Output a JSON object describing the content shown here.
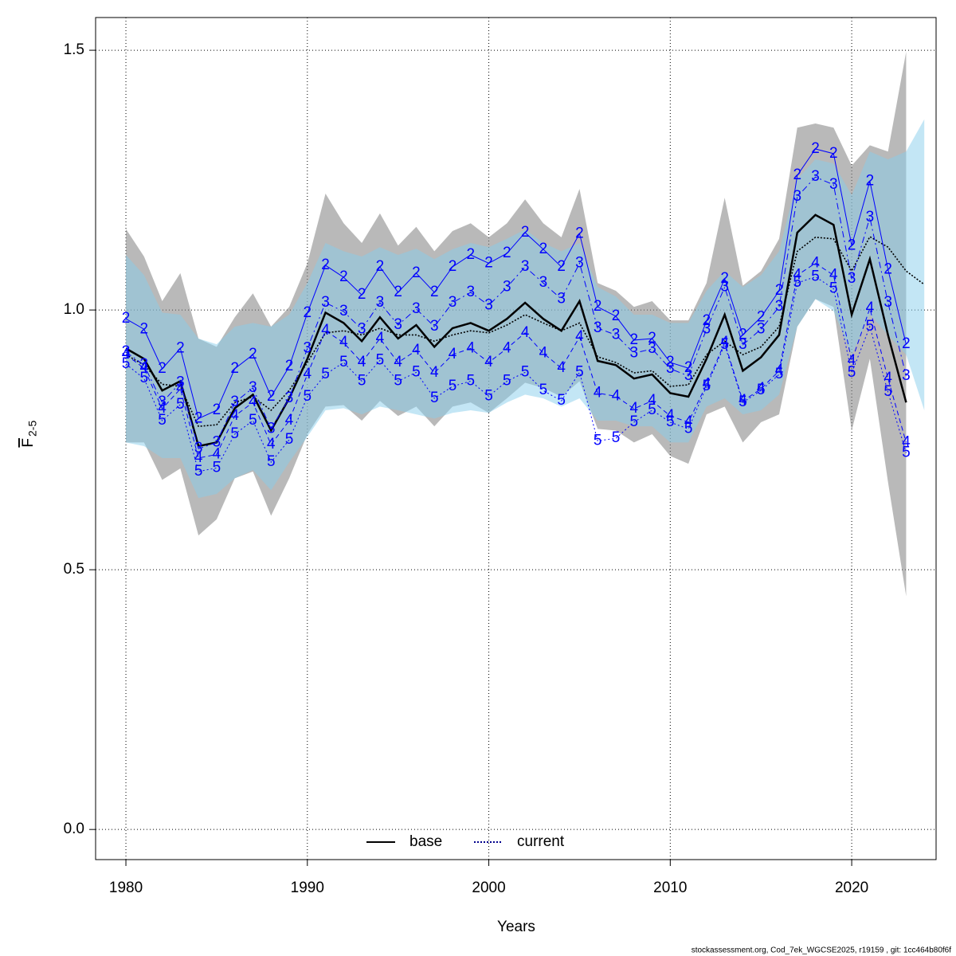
{
  "chart_data": {
    "type": "line",
    "x_label": "Years",
    "y_label": "F",
    "y_label_subscript": "2-5",
    "footer": "stockassessment.org, Cod_7ek_WGCSE2025, r19159 , git: 1cc464b80f6f",
    "x": [
      1980,
      1981,
      1982,
      1983,
      1984,
      1985,
      1986,
      1987,
      1988,
      1989,
      1990,
      1991,
      1992,
      1993,
      1994,
      1995,
      1996,
      1997,
      1998,
      1999,
      2000,
      2001,
      2002,
      2003,
      2004,
      2005,
      2006,
      2007,
      2008,
      2009,
      2010,
      2011,
      2012,
      2013,
      2014,
      2015,
      2016,
      2017,
      2018,
      2019,
      2020,
      2021,
      2022,
      2023,
      2024
    ],
    "xlim": [
      1978.33,
      2024.65
    ],
    "xticks": [
      1980,
      1990,
      2000,
      2010,
      2020
    ],
    "ylim": [
      -0.058,
      1.563
    ],
    "yticks": [
      {
        "value": 0,
        "label": "0.0"
      },
      0.5,
      {
        "value": 1,
        "label": "1.0"
      },
      1.5
    ],
    "grid": true,
    "legend_position": "bottom",
    "series": [
      {
        "name": "base",
        "color": "#000000",
        "band_color": "#808080",
        "values": [
          0.926,
          0.906,
          0.845,
          0.863,
          0.738,
          0.745,
          0.811,
          0.837,
          0.768,
          0.83,
          0.906,
          0.995,
          0.975,
          0.94,
          0.986,
          0.945,
          0.971,
          0.929,
          0.965,
          0.975,
          0.96,
          0.983,
          1.014,
          0.983,
          0.96,
          1.017,
          0.902,
          0.894,
          0.868,
          0.876,
          0.84,
          0.833,
          0.906,
          0.991,
          0.883,
          0.909,
          0.952,
          1.149,
          1.183,
          1.164,
          0.991,
          1.098,
          0.952,
          0.822,
          null
        ],
        "lower": [
          0.745,
          0.745,
          0.673,
          0.695,
          0.566,
          0.597,
          0.676,
          0.689,
          0.604,
          0.676,
          0.761,
          0.814,
          0.817,
          0.787,
          0.825,
          0.796,
          0.814,
          0.776,
          0.814,
          0.822,
          0.802,
          0.83,
          0.86,
          0.85,
          0.833,
          0.863,
          0.771,
          0.768,
          0.745,
          0.761,
          0.719,
          0.704,
          0.799,
          0.814,
          0.745,
          0.784,
          0.799,
          0.968,
          1.021,
          1.006,
          0.768,
          0.906,
          0.669,
          0.449,
          null
        ],
        "upper": [
          1.156,
          1.103,
          1.017,
          1.071,
          0.945,
          0.929,
          0.986,
          1.032,
          0.968,
          1.006,
          1.09,
          1.224,
          1.167,
          1.129,
          1.186,
          1.124,
          1.16,
          1.113,
          1.152,
          1.167,
          1.14,
          1.167,
          1.213,
          1.167,
          1.14,
          1.233,
          1.052,
          1.037,
          1.006,
          1.017,
          0.98,
          0.98,
          1.052,
          1.216,
          1.047,
          1.075,
          1.137,
          1.351,
          1.359,
          1.351,
          1.278,
          1.317,
          1.305,
          1.497,
          null
        ]
      },
      {
        "name": "current",
        "color": "#00008b",
        "band_color": "#87ceeb",
        "values": [
          0.914,
          0.894,
          0.857,
          0.853,
          0.776,
          0.779,
          0.822,
          0.833,
          0.807,
          0.845,
          0.899,
          0.956,
          0.96,
          0.952,
          0.965,
          0.952,
          0.952,
          0.94,
          0.952,
          0.96,
          0.956,
          0.971,
          0.991,
          0.975,
          0.96,
          0.975,
          0.91,
          0.899,
          0.879,
          0.883,
          0.853,
          0.856,
          0.914,
          0.94,
          0.914,
          0.929,
          0.968,
          1.113,
          1.14,
          1.137,
          1.075,
          1.141,
          1.121,
          1.075,
          1.049
        ],
        "lower": [
          0.745,
          0.738,
          0.715,
          0.715,
          0.638,
          0.646,
          0.676,
          0.692,
          0.653,
          0.707,
          0.756,
          0.807,
          0.811,
          0.799,
          0.814,
          0.807,
          0.799,
          0.791,
          0.802,
          0.807,
          0.802,
          0.822,
          0.837,
          0.83,
          0.814,
          0.83,
          0.787,
          0.787,
          0.776,
          0.776,
          0.745,
          0.745,
          0.814,
          0.83,
          0.799,
          0.807,
          0.837,
          0.968,
          1.021,
          0.998,
          0.914,
          0.991,
          0.952,
          0.914,
          0.807
        ],
        "upper": [
          1.106,
          1.067,
          0.995,
          0.991,
          0.945,
          0.934,
          0.968,
          0.975,
          0.968,
          0.991,
          1.052,
          1.129,
          1.113,
          1.103,
          1.121,
          1.106,
          1.118,
          1.098,
          1.117,
          1.129,
          1.121,
          1.137,
          1.155,
          1.129,
          1.113,
          1.129,
          1.044,
          1.026,
          0.991,
          0.991,
          0.975,
          0.975,
          1.037,
          1.075,
          1.044,
          1.067,
          1.113,
          1.252,
          1.29,
          1.282,
          1.221,
          1.305,
          1.29,
          1.305,
          1.367
        ]
      },
      {
        "name": "2",
        "color": "#0000ff",
        "values": [
          0.983,
          0.963,
          0.887,
          0.926,
          0.791,
          0.807,
          0.887,
          0.914,
          0.833,
          0.891,
          0.994,
          1.086,
          1.063,
          1.029,
          1.083,
          1.034,
          1.071,
          1.034,
          1.083,
          1.106,
          1.09,
          1.109,
          1.149,
          1.117,
          1.083,
          1.147,
          1.006,
          0.988,
          0.942,
          0.945,
          0.899,
          0.888,
          0.979,
          1.06,
          0.952,
          0.986,
          1.037,
          1.259,
          1.31,
          1.301,
          1.124,
          1.248,
          1.078,
          0.934,
          null
        ]
      },
      {
        "name": "3",
        "color": "#0000ff",
        "values": [
          0.919,
          0.894,
          0.822,
          0.86,
          0.733,
          0.745,
          0.822,
          0.85,
          0.771,
          0.83,
          0.926,
          1.014,
          0.997,
          0.963,
          1.014,
          0.971,
          1.002,
          0.968,
          1.014,
          1.034,
          1.009,
          1.044,
          1.083,
          1.052,
          1.021,
          1.09,
          0.965,
          0.952,
          0.917,
          0.925,
          0.887,
          0.873,
          0.963,
          1.044,
          0.933,
          0.963,
          1.006,
          1.218,
          1.256,
          1.241,
          1.06,
          1.178,
          1.014,
          0.873,
          null
        ]
      },
      {
        "name": "4",
        "color": "#0000ff",
        "values": [
          0.914,
          0.888,
          0.81,
          0.848,
          0.715,
          0.722,
          0.796,
          0.822,
          0.741,
          0.787,
          0.876,
          0.96,
          0.937,
          0.899,
          0.945,
          0.899,
          0.922,
          0.879,
          0.914,
          0.926,
          0.899,
          0.926,
          0.956,
          0.917,
          0.888,
          0.948,
          0.84,
          0.834,
          0.81,
          0.825,
          0.796,
          0.784,
          0.857,
          0.937,
          0.825,
          0.848,
          0.883,
          1.067,
          1.09,
          1.067,
          0.902,
          1.003,
          0.868,
          0.745,
          null
        ]
      },
      {
        "name": "5",
        "color": "#0000ff",
        "values": [
          0.896,
          0.868,
          0.787,
          0.818,
          0.689,
          0.696,
          0.761,
          0.787,
          0.707,
          0.75,
          0.833,
          0.876,
          0.899,
          0.863,
          0.903,
          0.863,
          0.88,
          0.83,
          0.853,
          0.863,
          0.834,
          0.863,
          0.88,
          0.845,
          0.825,
          0.88,
          0.748,
          0.753,
          0.784,
          0.807,
          0.784,
          0.771,
          0.853,
          0.933,
          0.822,
          0.845,
          0.876,
          1.052,
          1.064,
          1.041,
          0.879,
          0.968,
          0.842,
          0.725,
          null
        ]
      }
    ]
  }
}
